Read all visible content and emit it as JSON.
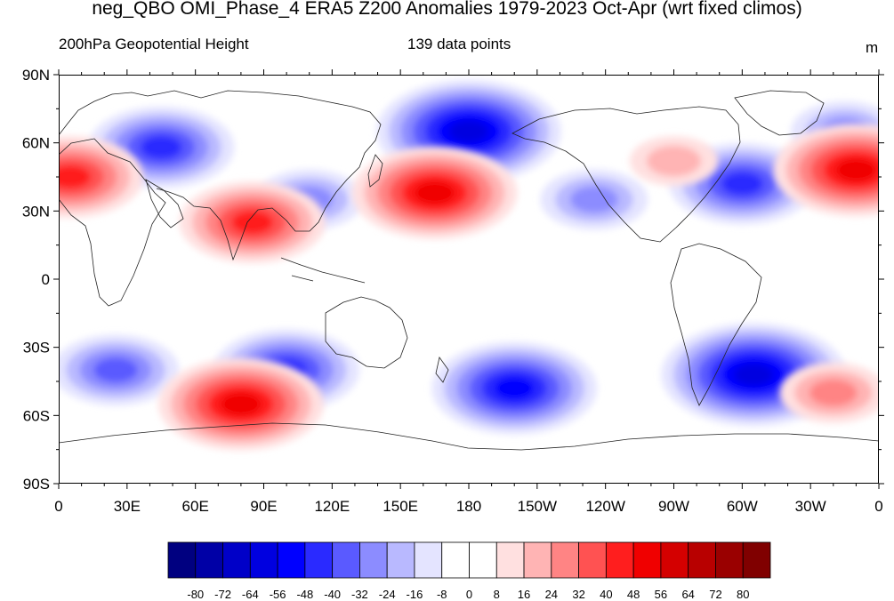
{
  "title": "neg_QBO OMI_Phase_4 ERA5 Z200 Anomalies 1979-2023 Oct-Apr (wrt fixed climos)",
  "subtitle": "200hPa Geopotential Height",
  "npoints": "139 data points",
  "units": "m",
  "lat_labels": [
    "90N",
    "60N",
    "30N",
    "0",
    "30S",
    "60S",
    "90S"
  ],
  "lon_labels": [
    "0",
    "30E",
    "60E",
    "90E",
    "120E",
    "150E",
    "180",
    "150W",
    "120W",
    "90W",
    "60W",
    "30W",
    "0"
  ],
  "colorbar": {
    "labels": [
      "-80",
      "-72",
      "-64",
      "-56",
      "-48",
      "-40",
      "-32",
      "-24",
      "-16",
      "-8",
      "0",
      "8",
      "16",
      "24",
      "32",
      "40",
      "48",
      "56",
      "64",
      "72",
      "80"
    ],
    "colors": [
      "#000080",
      "#0000a6",
      "#0000c8",
      "#0000e0",
      "#0000ff",
      "#2a2aff",
      "#5a5aff",
      "#8c8cff",
      "#b9b9ff",
      "#e4e4ff",
      "#ffffff",
      "#ffffff",
      "#ffe0e0",
      "#ffb4b4",
      "#ff8484",
      "#ff5252",
      "#ff1e1e",
      "#f00000",
      "#d40000",
      "#b80000",
      "#9a0000",
      "#800000"
    ]
  },
  "map_data": {
    "type": "filled-contour",
    "variable": "Z200 anomaly",
    "anomaly_centers": [
      {
        "lon": 180,
        "lat": 65,
        "value": -56
      },
      {
        "lon": 45,
        "lat": 58,
        "value": -40
      },
      {
        "lon": 110,
        "lat": 35,
        "value": -24
      },
      {
        "lon": 235,
        "lat": 35,
        "value": -24
      },
      {
        "lon": 300,
        "lat": 42,
        "value": -40
      },
      {
        "lon": 345,
        "lat": 65,
        "value": -24
      },
      {
        "lon": 25,
        "lat": -40,
        "value": -32
      },
      {
        "lon": 100,
        "lat": -40,
        "value": -40
      },
      {
        "lon": 200,
        "lat": -48,
        "value": -48
      },
      {
        "lon": 305,
        "lat": -42,
        "value": -56
      },
      {
        "lon": 5,
        "lat": 45,
        "value": 40
      },
      {
        "lon": 85,
        "lat": 25,
        "value": 40
      },
      {
        "lon": 165,
        "lat": 38,
        "value": 48
      },
      {
        "lon": 270,
        "lat": 52,
        "value": 16
      },
      {
        "lon": 350,
        "lat": 48,
        "value": 48
      },
      {
        "lon": 80,
        "lat": -55,
        "value": 48
      },
      {
        "lon": 340,
        "lat": -50,
        "value": 24
      }
    ]
  }
}
